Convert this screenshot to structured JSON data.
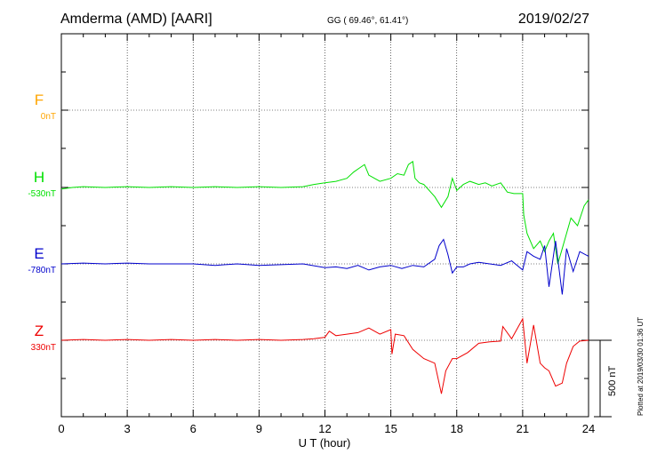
{
  "header": {
    "station": "Amderma (AMD)  [AARI]",
    "coords": "GG ( 69.46°,  61.41°)",
    "date": "2019/02/27"
  },
  "footer": {
    "plotted": "Plotted at 2019/03/30 01:36 UT",
    "scale_label": "500 nT"
  },
  "colors": {
    "F": "#ffa500",
    "H": "#00e000",
    "E": "#0000cc",
    "Z": "#ee0000"
  },
  "chart_data": {
    "type": "line",
    "xlabel": "U T (hour)",
    "xlim": [
      0,
      24
    ],
    "x_ticks": [
      0,
      3,
      6,
      9,
      12,
      15,
      18,
      21,
      24
    ],
    "x_tick_labels": [
      "0",
      "3",
      "6",
      "9",
      "12",
      "15",
      "18",
      "21",
      "24"
    ],
    "y_unit": "nT",
    "scale_bar_nT": 500,
    "grid": true,
    "series": [
      {
        "name": "F",
        "baseline_label": "0nT",
        "x": [],
        "y": []
      },
      {
        "name": "H",
        "baseline_label": "-530nT",
        "x": [
          0,
          0.5,
          1,
          2,
          3,
          4,
          5,
          6,
          7,
          8,
          9,
          10,
          11,
          11.5,
          12,
          12.5,
          13,
          13.3,
          13.6,
          13.8,
          14,
          14.5,
          15,
          15.3,
          15.6,
          15.8,
          16,
          16.1,
          16.3,
          16.5,
          17,
          17.3,
          17.6,
          17.8,
          18,
          18.3,
          18.6,
          19,
          19.3,
          19.6,
          20,
          20.3,
          20.6,
          21,
          21.05,
          21.2,
          21.5,
          21.8,
          22,
          22.2,
          22.4,
          22.6,
          22.8,
          23,
          23.2,
          23.5,
          23.8,
          24
        ],
        "y": [
          -10,
          0,
          5,
          0,
          5,
          0,
          5,
          0,
          5,
          0,
          5,
          0,
          5,
          20,
          30,
          40,
          60,
          100,
          130,
          150,
          80,
          40,
          60,
          90,
          80,
          150,
          170,
          60,
          30,
          20,
          -60,
          -130,
          -60,
          60,
          -20,
          20,
          40,
          20,
          30,
          10,
          30,
          -30,
          -40,
          -40,
          -180,
          -300,
          -400,
          -350,
          -420,
          -350,
          -300,
          -500,
          -400,
          -300,
          -200,
          -250,
          -120,
          -80
        ]
      },
      {
        "name": "E",
        "baseline_label": "-780nT",
        "x": [
          0,
          1,
          2,
          3,
          4,
          5,
          6,
          7,
          8,
          9,
          10,
          11,
          12,
          12.5,
          13,
          13.5,
          14,
          14.5,
          15,
          15.5,
          16,
          16.5,
          17,
          17.2,
          17.4,
          17.6,
          17.8,
          18,
          18.3,
          18.6,
          19,
          19.5,
          20,
          20.5,
          21,
          21.2,
          21.5,
          21.8,
          22,
          22.2,
          22.5,
          22.8,
          23,
          23.3,
          23.6,
          24
        ],
        "y": [
          0,
          5,
          0,
          5,
          0,
          0,
          0,
          -10,
          0,
          -10,
          -5,
          0,
          -25,
          -20,
          -30,
          -10,
          -40,
          -20,
          -10,
          -30,
          -10,
          -20,
          30,
          120,
          160,
          60,
          -60,
          -20,
          -20,
          0,
          10,
          0,
          -10,
          20,
          -40,
          80,
          50,
          30,
          120,
          -150,
          150,
          -200,
          100,
          -50,
          80,
          50
        ]
      },
      {
        "name": "Z",
        "baseline_label": "330nT",
        "x": [
          0,
          1,
          2,
          3,
          4,
          5,
          6,
          7,
          8,
          9,
          10,
          11,
          11.5,
          12,
          12.2,
          12.5,
          13,
          13.5,
          14,
          14.5,
          15,
          15.05,
          15.2,
          15.6,
          16,
          16.5,
          17,
          17.3,
          17.5,
          17.8,
          18,
          18.5,
          19,
          19.5,
          20,
          20.1,
          20.5,
          21,
          21.2,
          21.5,
          21.8,
          22,
          22.2,
          22.5,
          22.8,
          23,
          23.3,
          23.6,
          24
        ],
        "y": [
          0,
          5,
          0,
          5,
          0,
          5,
          0,
          5,
          0,
          5,
          0,
          5,
          10,
          20,
          60,
          30,
          40,
          50,
          80,
          40,
          70,
          -90,
          40,
          30,
          -60,
          -120,
          -150,
          -350,
          -200,
          -120,
          -120,
          -80,
          -20,
          -10,
          -5,
          90,
          10,
          140,
          -150,
          100,
          -150,
          -180,
          -200,
          -300,
          -280,
          -150,
          -40,
          -5,
          0
        ]
      }
    ]
  }
}
